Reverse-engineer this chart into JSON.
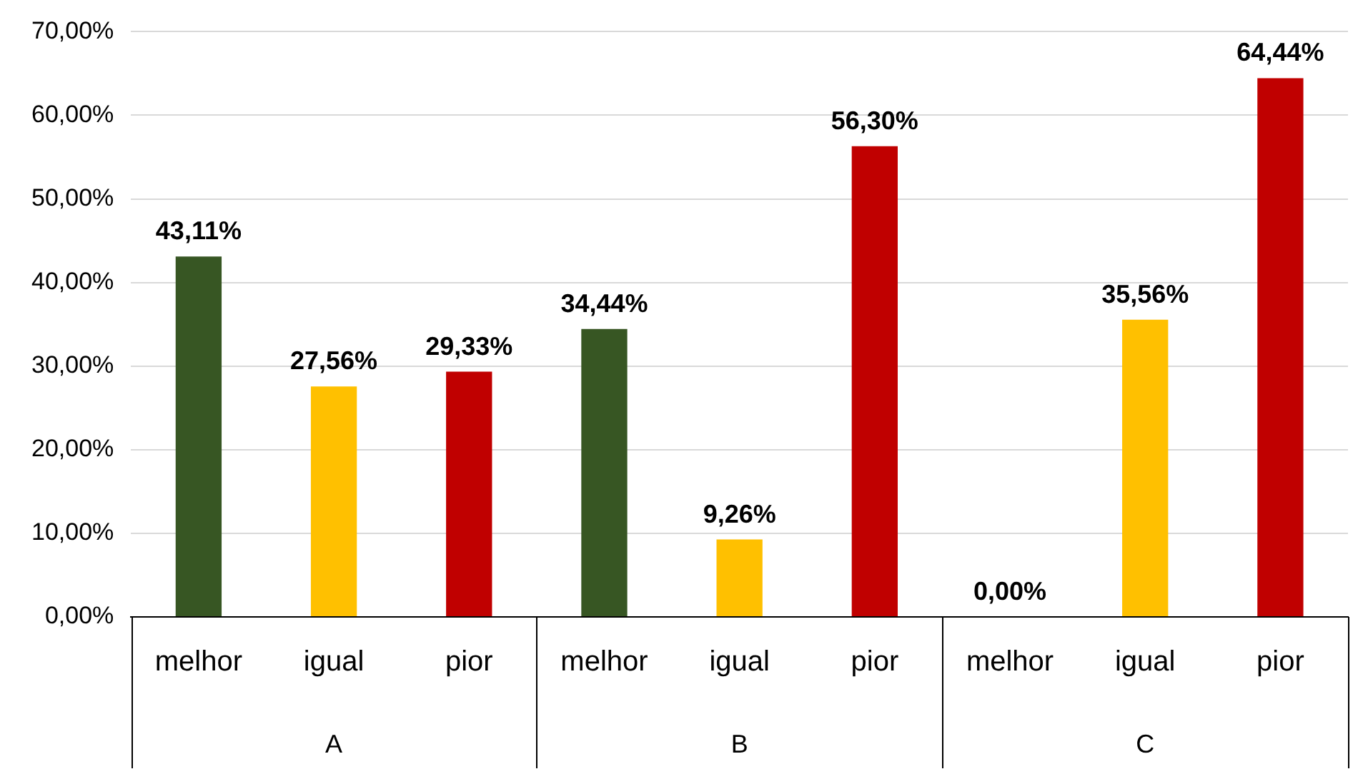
{
  "chart_data": {
    "type": "bar",
    "categories": [
      "melhor",
      "igual",
      "pior",
      "melhor",
      "igual",
      "pior",
      "melhor",
      "igual",
      "pior"
    ],
    "values": [
      43.11,
      27.56,
      29.33,
      34.44,
      9.26,
      56.3,
      0.0,
      35.56,
      64.44
    ],
    "colors": [
      "#375623",
      "#ffc000",
      "#c00000",
      "#375623",
      "#ffc000",
      "#c00000",
      "#375623",
      "#ffc000",
      "#c00000"
    ],
    "value_labels": [
      "43,11%",
      "27,56%",
      "29,33%",
      "34,44%",
      "9,26%",
      "56,30%",
      "0,00%",
      "35,56%",
      "64,44%"
    ],
    "annotations": [
      "A",
      "B",
      "C"
    ],
    "ylim": [
      0,
      70
    ],
    "yticks": [
      {
        "value": 0,
        "label": "0,00%"
      },
      {
        "value": 10,
        "label": "10,00%"
      },
      {
        "value": 20,
        "label": "20,00%"
      },
      {
        "value": 30,
        "label": "30,00%"
      },
      {
        "value": 40,
        "label": "40,00%"
      },
      {
        "value": 50,
        "label": "50,00%"
      },
      {
        "value": 60,
        "label": "60,00%"
      },
      {
        "value": 70,
        "label": "70,00%"
      }
    ],
    "grid": "y",
    "legend": false
  }
}
